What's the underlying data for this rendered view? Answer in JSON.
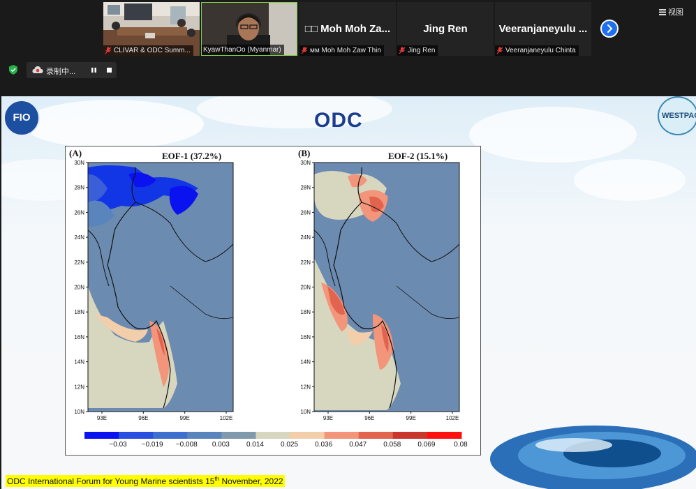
{
  "meeting": {
    "participants": [
      {
        "display": "",
        "label": "CLIVAR & ODC Summ..."
      },
      {
        "display": "",
        "label": "KyawThanOo (Myanmar)"
      },
      {
        "display": "□□ Moh Moh Za...",
        "label": "мм Moh Moh Zaw Thin"
      },
      {
        "display": "Jing Ren",
        "label": "Jing Ren"
      },
      {
        "display": "Veeranjaneyulu ...",
        "label": "Veeranjaneyulu Chinta"
      }
    ],
    "view_label": "视图",
    "recording_label": "录制中...",
    "accent_color": "#1f6ff0"
  },
  "slide": {
    "logo_left": "FIO",
    "logo_center": "ODC",
    "logo_right": "WESTPAC",
    "footer": {
      "text_before": "ODC International Forum for Young Marine scientists  15",
      "sup": "th",
      "text_after": " November, 2022"
    }
  },
  "figure": {
    "panels": [
      {
        "tag": "(A)",
        "title": "EOF-1 (37.2%)"
      },
      {
        "tag": "(B)",
        "title": "EOF-2 (15.1%)"
      }
    ],
    "y_ticks": [
      "30N",
      "28N",
      "26N",
      "24N",
      "22N",
      "20N",
      "18N",
      "16N",
      "14N",
      "12N",
      "10N"
    ],
    "x_ticks": [
      "93E",
      "96E",
      "99E",
      "102E"
    ],
    "colorbar": {
      "labels": [
        "−0.03",
        "−0.019",
        "−0.008",
        "0.003",
        "0.014",
        "0.025",
        "0.036",
        "0.047",
        "0.058",
        "0.069",
        "0.08"
      ],
      "colors": [
        "#0b12f0",
        "#2a4fe0",
        "#3f6fce",
        "#5a84bc",
        "#8099ad",
        "#d7d6bf",
        "#f2ceaa",
        "#f2957a",
        "#e2644f",
        "#c8362c",
        "#ff1010"
      ]
    }
  }
}
